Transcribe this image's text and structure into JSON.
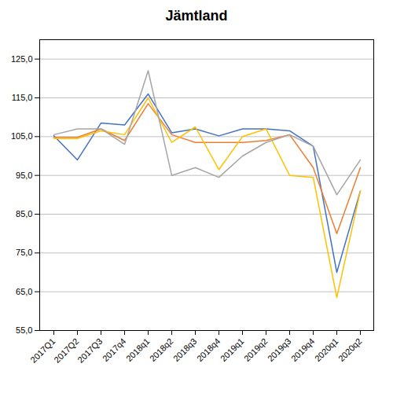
{
  "chart_data": {
    "type": "line",
    "title": "Jämtland",
    "categories": [
      "2017Q1",
      "2017Q2",
      "2017Q3",
      "2017q4",
      "2018q1",
      "2018q2",
      "2018q3",
      "2018q4",
      "2019q1",
      "2019q2",
      "2019q3",
      "2019q4",
      "2020q1",
      "2020q2"
    ],
    "series": [
      {
        "color": "#4472C4",
        "values": [
          105.2,
          99.0,
          108.5,
          108.0,
          116.0,
          106.0,
          107.0,
          105.2,
          107.0,
          107.0,
          106.5,
          102.5,
          70.0,
          91.0
        ]
      },
      {
        "color": "#ED7D31",
        "values": [
          104.8,
          104.8,
          107.0,
          104.0,
          113.5,
          105.5,
          103.5,
          103.5,
          103.5,
          104.0,
          105.5,
          97.0,
          80.0,
          97.0
        ]
      },
      {
        "color": "#FFC000",
        "values": [
          104.5,
          104.5,
          106.5,
          105.5,
          115.0,
          103.5,
          107.5,
          96.5,
          105.0,
          107.0,
          95.0,
          94.5,
          63.5,
          91.0
        ]
      },
      {
        "color": "#A5A5A5",
        "values": [
          105.5,
          107.0,
          107.0,
          103.0,
          122.0,
          95.0,
          97.0,
          94.5,
          100.0,
          103.5,
          105.5,
          102.5,
          90.0,
          99.0
        ]
      }
    ],
    "ylim": [
      55.0,
      130.0
    ],
    "yticks": [
      {
        "value": 55.0,
        "label": "55,0"
      },
      {
        "value": 65.0,
        "label": "65,0"
      },
      {
        "value": 75.0,
        "label": "75,0"
      },
      {
        "value": 85.0,
        "label": "85,0"
      },
      {
        "value": 95.0,
        "label": "95,0"
      },
      {
        "value": 105.0,
        "label": "105,0"
      },
      {
        "value": 115.0,
        "label": "115,0"
      },
      {
        "value": 125.0,
        "label": "125,0"
      }
    ],
    "grid": true
  }
}
